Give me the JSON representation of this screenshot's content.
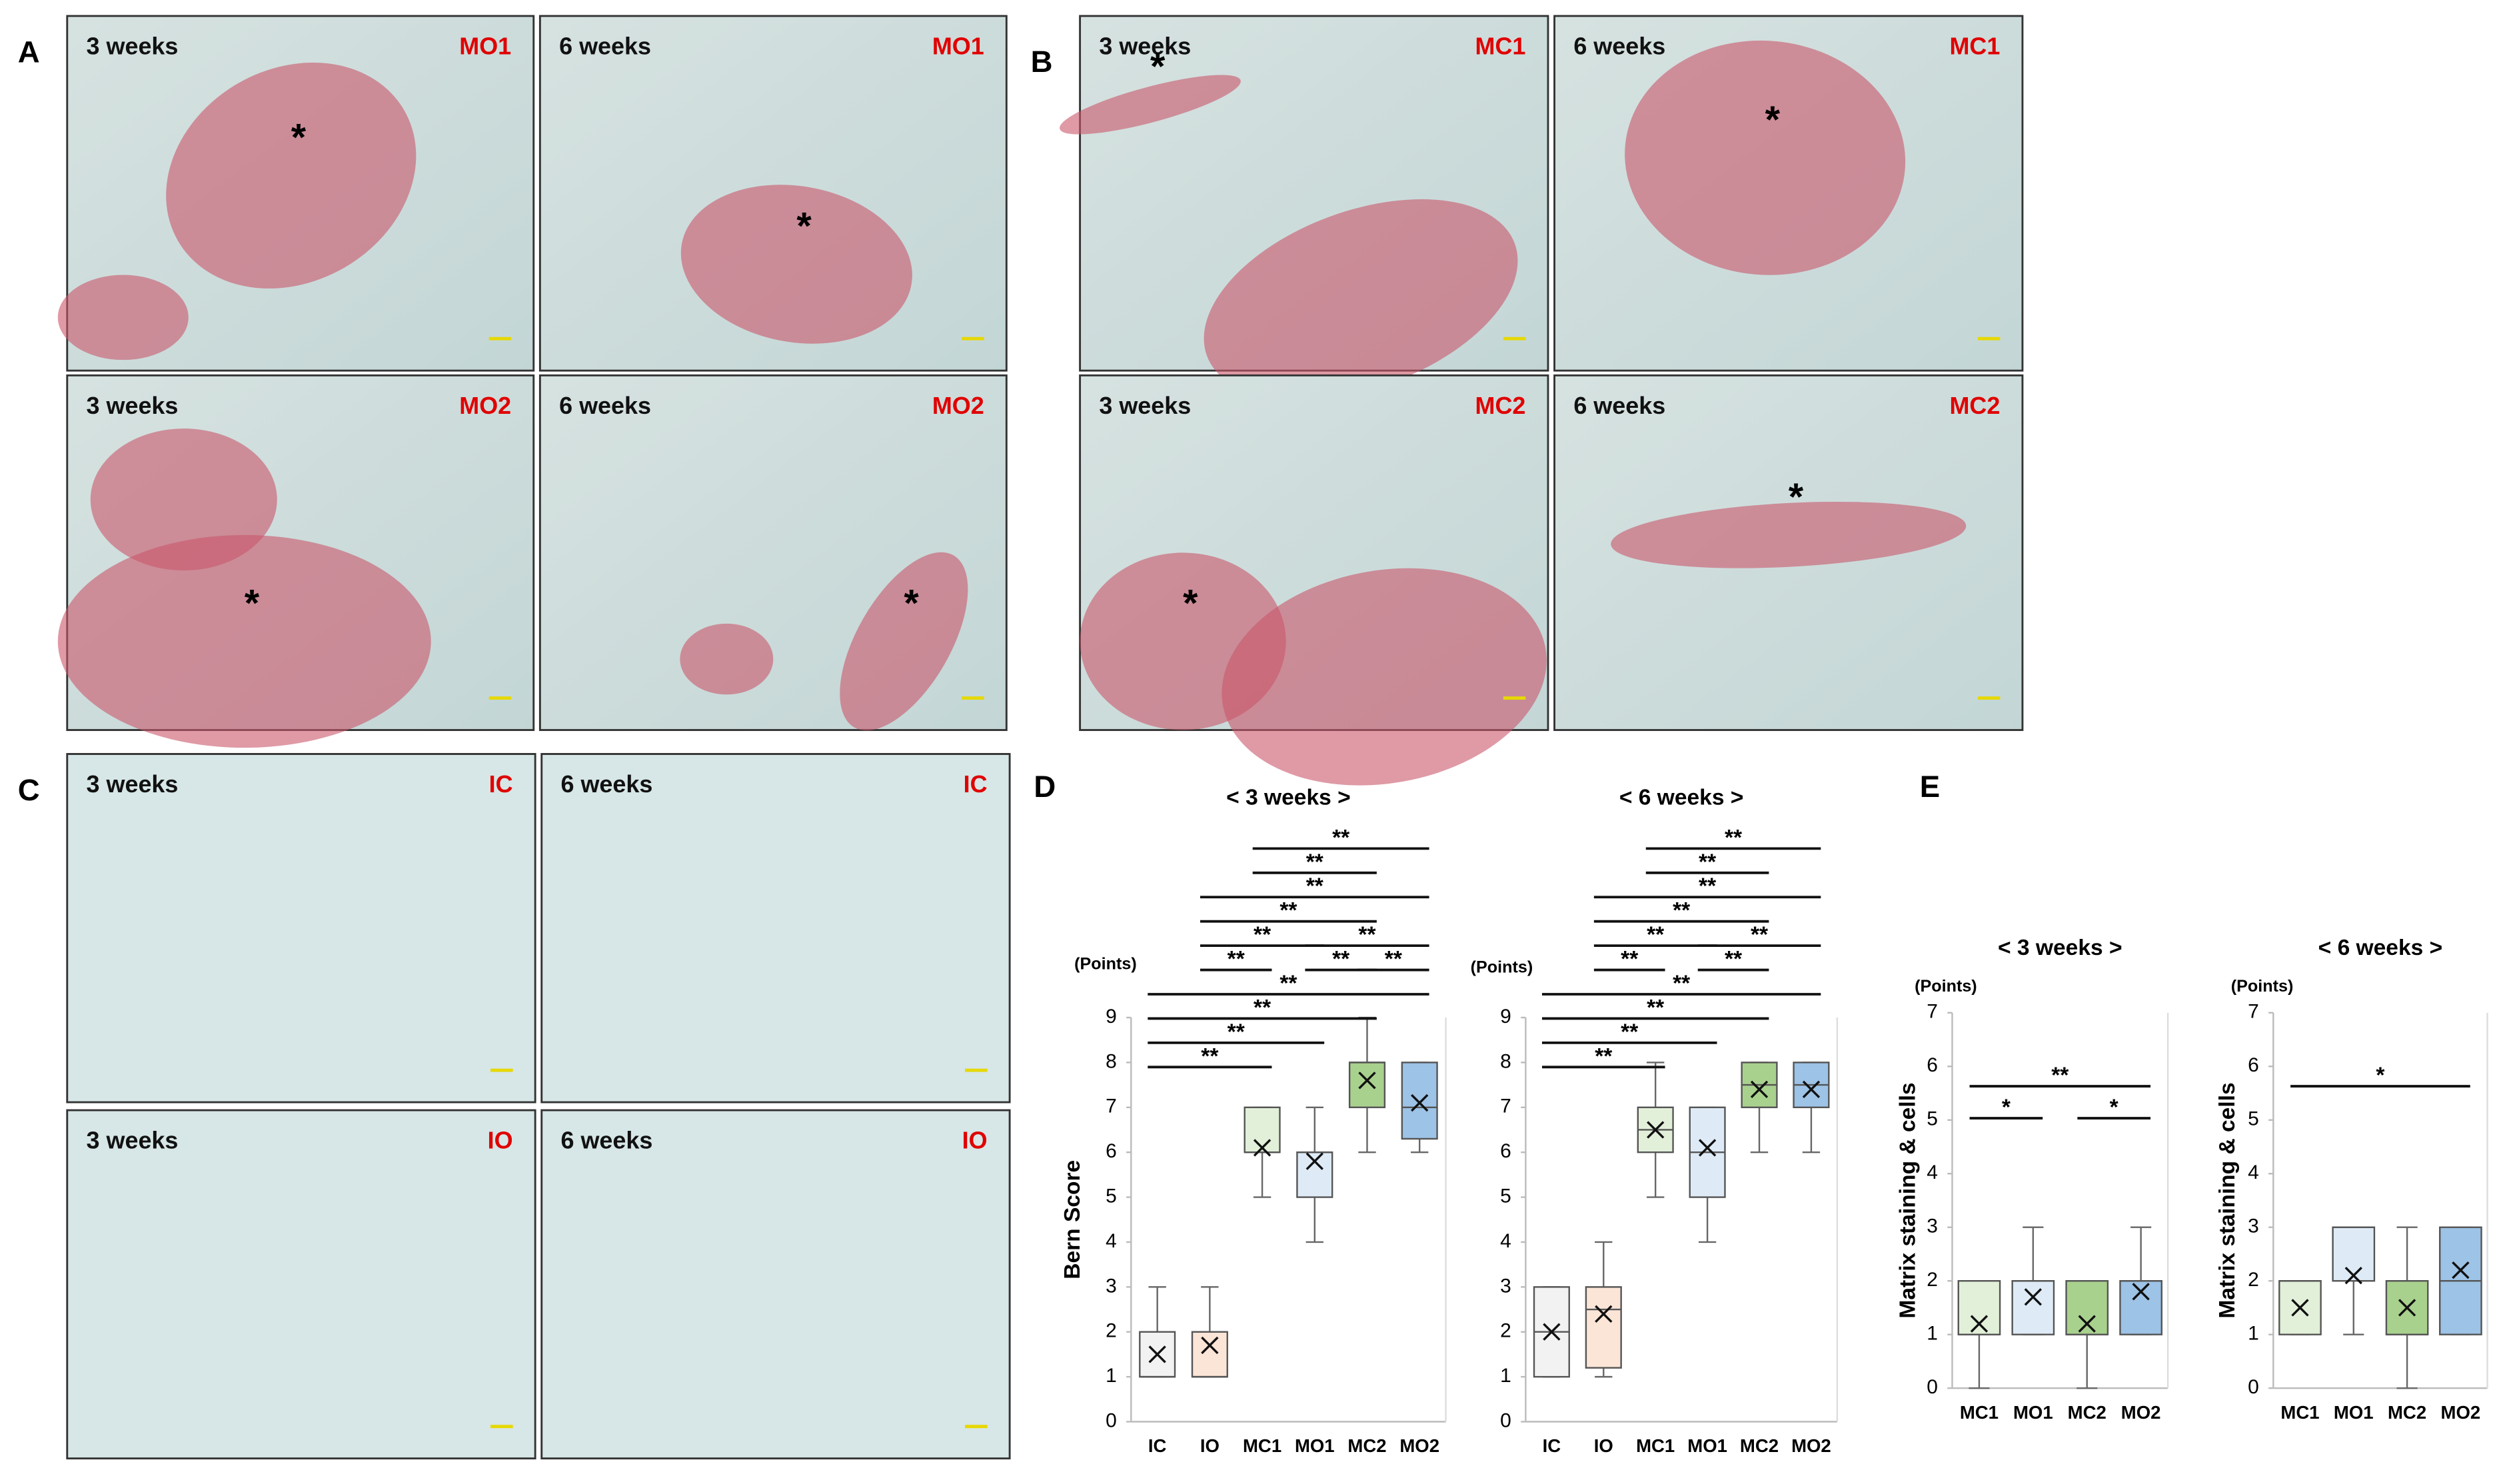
{
  "panels": [
    {
      "letter": "A",
      "tiles": [
        {
          "time": "3 weeks",
          "group": "MO1",
          "marker": "*"
        },
        {
          "time": "6 weeks",
          "group": "MO1",
          "marker": "*"
        },
        {
          "time": "3 weeks",
          "group": "MO2",
          "marker": "*"
        },
        {
          "time": "6 weeks",
          "group": "MO2",
          "marker": "*"
        }
      ]
    },
    {
      "letter": "B",
      "tiles": [
        {
          "time": "3 weeks",
          "group": "MC1",
          "marker": "*"
        },
        {
          "time": "6 weeks",
          "group": "MC1",
          "marker": "*"
        },
        {
          "time": "3 weeks",
          "group": "MC2",
          "marker": "*"
        },
        {
          "time": "6 weeks",
          "group": "MC2",
          "marker": "*"
        }
      ]
    },
    {
      "letter": "C",
      "tiles": [
        {
          "time": "3 weeks",
          "group": "IC"
        },
        {
          "time": "6 weeks",
          "group": "IC"
        },
        {
          "time": "3 weeks",
          "group": "IO"
        },
        {
          "time": "6 weeks",
          "group": "IO"
        }
      ]
    }
  ],
  "chart_letters": [
    "D",
    "E"
  ],
  "chart_data": [
    {
      "type": "box",
      "title": "< 3 weeks >",
      "y_label": "Bern Score",
      "y_unit": "(Points)",
      "categories": [
        "IC",
        "IO",
        "MC1",
        "MO1",
        "MC2",
        "MO2"
      ],
      "colors": [
        "#f2f2f2",
        "#fbe5d6",
        "#e2f0d9",
        "#deebf7",
        "#a9d18e",
        "#9dc3e6"
      ],
      "boxes": [
        {
          "min": 1,
          "q1": 1,
          "median": 1,
          "q3": 2,
          "max": 3,
          "mean": 1.5
        },
        {
          "min": 1,
          "q1": 1,
          "median": 1,
          "q3": 2,
          "max": 3,
          "mean": 1.7
        },
        {
          "min": 5,
          "q1": 6,
          "median": 6,
          "q3": 7,
          "max": 7,
          "mean": 6.1
        },
        {
          "min": 4,
          "q1": 5,
          "median": 6,
          "q3": 6,
          "max": 7,
          "mean": 5.8
        },
        {
          "min": 6,
          "q1": 7,
          "median": 8,
          "q3": 8,
          "max": 9,
          "mean": 7.6
        },
        {
          "min": 6,
          "q1": 6.3,
          "median": 7,
          "q3": 8,
          "max": 8,
          "mean": 7.1
        }
      ],
      "ylim": [
        0,
        9
      ],
      "yticks": [
        0,
        1,
        2,
        3,
        4,
        5,
        6,
        7,
        8,
        9
      ],
      "significance": [
        {
          "label": "**",
          "from": 0,
          "to": 2
        },
        {
          "label": "**",
          "from": 0,
          "to": 3
        },
        {
          "label": "**",
          "from": 0,
          "to": 4
        },
        {
          "label": "**",
          "from": 0,
          "to": 5
        },
        {
          "label": "**",
          "from": 1,
          "to": 2
        },
        {
          "label": "**",
          "from": 3,
          "to": 4
        },
        {
          "label": "**",
          "from": 4,
          "to": 5
        },
        {
          "label": "**",
          "from": 1,
          "to": 3
        },
        {
          "label": "**",
          "from": 3,
          "to": 5
        },
        {
          "label": "**",
          "from": 1,
          "to": 4
        },
        {
          "label": "**",
          "from": 1,
          "to": 5
        },
        {
          "label": "**",
          "from": 2,
          "to": 4
        },
        {
          "label": "**",
          "from": 2,
          "to": 5
        }
      ]
    },
    {
      "type": "box",
      "title": "< 6 weeks >",
      "y_unit": "(Points)",
      "categories": [
        "IC",
        "IO",
        "MC1",
        "MO1",
        "MC2",
        "MO2"
      ],
      "colors": [
        "#f2f2f2",
        "#fbe5d6",
        "#e2f0d9",
        "#deebf7",
        "#a9d18e",
        "#9dc3e6"
      ],
      "boxes": [
        {
          "min": 1,
          "q1": 1,
          "median": 2,
          "q3": 3,
          "max": 3,
          "mean": 2
        },
        {
          "min": 1,
          "q1": 1.2,
          "median": 2.5,
          "q3": 3,
          "max": 4,
          "mean": 2.4
        },
        {
          "min": 5,
          "q1": 6,
          "median": 6.5,
          "q3": 7,
          "max": 8,
          "mean": 6.5
        },
        {
          "min": 4,
          "q1": 5,
          "median": 6,
          "q3": 7,
          "max": 7,
          "mean": 6.1
        },
        {
          "min": 6,
          "q1": 7,
          "median": 7.5,
          "q3": 8,
          "max": 8,
          "mean": 7.4
        },
        {
          "min": 6,
          "q1": 7,
          "median": 7.5,
          "q3": 8,
          "max": 8,
          "mean": 7.4
        }
      ],
      "ylim": [
        0,
        9
      ],
      "yticks": [
        0,
        1,
        2,
        3,
        4,
        5,
        6,
        7,
        8,
        9
      ],
      "significance": [
        {
          "label": "**",
          "from": 0,
          "to": 2
        },
        {
          "label": "**",
          "from": 0,
          "to": 3
        },
        {
          "label": "**",
          "from": 0,
          "to": 4
        },
        {
          "label": "**",
          "from": 0,
          "to": 5
        },
        {
          "label": "**",
          "from": 1,
          "to": 2
        },
        {
          "label": "**",
          "from": 3,
          "to": 4
        },
        {
          "label": "**",
          "from": 1,
          "to": 3
        },
        {
          "label": "**",
          "from": 3,
          "to": 5
        },
        {
          "label": "**",
          "from": 1,
          "to": 4
        },
        {
          "label": "**",
          "from": 1,
          "to": 5
        },
        {
          "label": "**",
          "from": 2,
          "to": 4
        },
        {
          "label": "**",
          "from": 2,
          "to": 5
        }
      ]
    },
    {
      "type": "box",
      "title": "< 3 weeks >",
      "y_label": "Matrix staining & cells",
      "y_unit": "(Points)",
      "categories": [
        "MC1",
        "MO1",
        "MC2",
        "MO2"
      ],
      "colors": [
        "#e2f0d9",
        "#deebf7",
        "#a9d18e",
        "#9dc3e6"
      ],
      "boxes": [
        {
          "min": 0,
          "q1": 1,
          "median": 1,
          "q3": 2,
          "max": 2,
          "mean": 1.2
        },
        {
          "min": 1,
          "q1": 1,
          "median": 2,
          "q3": 2,
          "max": 3,
          "mean": 1.7
        },
        {
          "min": 0,
          "q1": 1,
          "median": 1,
          "q3": 2,
          "max": 2,
          "mean": 1.2
        },
        {
          "min": 1,
          "q1": 1,
          "median": 2,
          "q3": 2,
          "max": 3,
          "mean": 1.8
        }
      ],
      "ylim": [
        0,
        7
      ],
      "yticks": [
        0,
        1,
        2,
        3,
        4,
        5,
        6,
        7
      ],
      "significance": [
        {
          "label": "*",
          "from": 0,
          "to": 1
        },
        {
          "label": "*",
          "from": 2,
          "to": 3
        },
        {
          "label": "**",
          "from": 0,
          "to": 3
        }
      ]
    },
    {
      "type": "box",
      "title": "< 6 weeks >",
      "y_label": "Matrix staining & cells",
      "y_unit": "(Points)",
      "categories": [
        "MC1",
        "MO1",
        "MC2",
        "MO2"
      ],
      "colors": [
        "#e2f0d9",
        "#deebf7",
        "#a9d18e",
        "#9dc3e6"
      ],
      "boxes": [
        {
          "min": 1,
          "q1": 1,
          "median": 2,
          "q3": 2,
          "max": 2,
          "mean": 1.5
        },
        {
          "min": 1,
          "q1": 2,
          "median": 3,
          "q3": 3,
          "max": 3,
          "mean": 2.1
        },
        {
          "min": 0,
          "q1": 1,
          "median": 1,
          "q3": 2,
          "max": 3,
          "mean": 1.5
        },
        {
          "min": 1,
          "q1": 1,
          "median": 2,
          "q3": 3,
          "max": 3,
          "mean": 2.2
        }
      ],
      "ylim": [
        0,
        7
      ],
      "yticks": [
        0,
        1,
        2,
        3,
        4,
        5,
        6,
        7
      ],
      "significance": [
        {
          "label": "*",
          "from": 0,
          "to": 3
        }
      ]
    }
  ]
}
